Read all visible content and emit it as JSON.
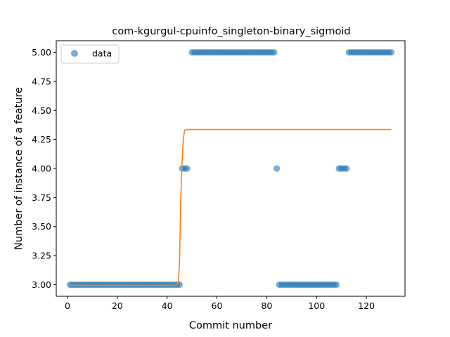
{
  "chart_data": {
    "type": "scatter",
    "title": "com-kgurgul-cpuinfo_singleton-binary_sigmoid",
    "xlabel": "Commit number",
    "ylabel": "Number of instance of a feature",
    "xlim": [
      -4.5,
      135.5
    ],
    "ylim": [
      2.9,
      5.1
    ],
    "x_ticks": [
      0,
      20,
      40,
      60,
      80,
      100,
      120
    ],
    "y_ticks": [
      3.0,
      3.25,
      3.5,
      3.75,
      4.0,
      4.25,
      4.5,
      4.75,
      5.0
    ],
    "x_tick_labels": [
      "0",
      "20",
      "40",
      "60",
      "80",
      "100",
      "120"
    ],
    "y_tick_labels": [
      "3.00",
      "3.25",
      "3.50",
      "3.75",
      "4.00",
      "4.25",
      "4.50",
      "4.75",
      "5.00"
    ],
    "grid": false,
    "legend": {
      "entries": [
        "data"
      ],
      "placement": "top-left"
    },
    "series": [
      {
        "name": "data",
        "kind": "scatter",
        "color": "#1f77b4",
        "points": [
          [
            1,
            3
          ],
          [
            2,
            3
          ],
          [
            3,
            3
          ],
          [
            4,
            3
          ],
          [
            5,
            3
          ],
          [
            6,
            3
          ],
          [
            7,
            3
          ],
          [
            8,
            3
          ],
          [
            9,
            3
          ],
          [
            10,
            3
          ],
          [
            11,
            3
          ],
          [
            12,
            3
          ],
          [
            13,
            3
          ],
          [
            14,
            3
          ],
          [
            15,
            3
          ],
          [
            16,
            3
          ],
          [
            17,
            3
          ],
          [
            18,
            3
          ],
          [
            19,
            3
          ],
          [
            20,
            3
          ],
          [
            21,
            3
          ],
          [
            22,
            3
          ],
          [
            23,
            3
          ],
          [
            24,
            3
          ],
          [
            25,
            3
          ],
          [
            26,
            3
          ],
          [
            27,
            3
          ],
          [
            28,
            3
          ],
          [
            29,
            3
          ],
          [
            30,
            3
          ],
          [
            31,
            3
          ],
          [
            32,
            3
          ],
          [
            33,
            3
          ],
          [
            34,
            3
          ],
          [
            35,
            3
          ],
          [
            36,
            3
          ],
          [
            37,
            3
          ],
          [
            38,
            3
          ],
          [
            39,
            3
          ],
          [
            40,
            3
          ],
          [
            41,
            3
          ],
          [
            42,
            3
          ],
          [
            43,
            3
          ],
          [
            44,
            3
          ],
          [
            45,
            3
          ],
          [
            46,
            4
          ],
          [
            47,
            4
          ],
          [
            48,
            4
          ],
          [
            50,
            5
          ],
          [
            51,
            5
          ],
          [
            52,
            5
          ],
          [
            53,
            5
          ],
          [
            54,
            5
          ],
          [
            55,
            5
          ],
          [
            56,
            5
          ],
          [
            57,
            5
          ],
          [
            58,
            5
          ],
          [
            59,
            5
          ],
          [
            60,
            5
          ],
          [
            61,
            5
          ],
          [
            62,
            5
          ],
          [
            63,
            5
          ],
          [
            64,
            5
          ],
          [
            65,
            5
          ],
          [
            66,
            5
          ],
          [
            67,
            5
          ],
          [
            68,
            5
          ],
          [
            69,
            5
          ],
          [
            70,
            5
          ],
          [
            71,
            5
          ],
          [
            72,
            5
          ],
          [
            73,
            5
          ],
          [
            74,
            5
          ],
          [
            75,
            5
          ],
          [
            76,
            5
          ],
          [
            77,
            5
          ],
          [
            78,
            5
          ],
          [
            79,
            5
          ],
          [
            80,
            5
          ],
          [
            81,
            5
          ],
          [
            82,
            5
          ],
          [
            83,
            5
          ],
          [
            84,
            4
          ],
          [
            85,
            3
          ],
          [
            86,
            3
          ],
          [
            87,
            3
          ],
          [
            88,
            3
          ],
          [
            89,
            3
          ],
          [
            90,
            3
          ],
          [
            91,
            3
          ],
          [
            92,
            3
          ],
          [
            93,
            3
          ],
          [
            94,
            3
          ],
          [
            95,
            3
          ],
          [
            96,
            3
          ],
          [
            97,
            3
          ],
          [
            98,
            3
          ],
          [
            99,
            3
          ],
          [
            100,
            3
          ],
          [
            101,
            3
          ],
          [
            102,
            3
          ],
          [
            103,
            3
          ],
          [
            104,
            3
          ],
          [
            105,
            3
          ],
          [
            106,
            3
          ],
          [
            107,
            3
          ],
          [
            108,
            3
          ],
          [
            109,
            4
          ],
          [
            110,
            4
          ],
          [
            111,
            4
          ],
          [
            112,
            4
          ],
          [
            113,
            5
          ],
          [
            114,
            5
          ],
          [
            115,
            5
          ],
          [
            116,
            5
          ],
          [
            117,
            5
          ],
          [
            118,
            5
          ],
          [
            119,
            5
          ],
          [
            120,
            5
          ],
          [
            121,
            5
          ],
          [
            122,
            5
          ],
          [
            123,
            5
          ],
          [
            124,
            5
          ],
          [
            125,
            5
          ],
          [
            126,
            5
          ],
          [
            127,
            5
          ],
          [
            128,
            5
          ],
          [
            129,
            5
          ],
          [
            130,
            5
          ]
        ]
      },
      {
        "name": "",
        "kind": "line",
        "color": "#ff7f0e",
        "points": [
          [
            1,
            2.995
          ],
          [
            43,
            2.995
          ],
          [
            44,
            3.0
          ],
          [
            44.6,
            3.03
          ],
          [
            45,
            3.2
          ],
          [
            45.5,
            3.75
          ],
          [
            46,
            4.05
          ],
          [
            46.5,
            4.25
          ],
          [
            47,
            4.33
          ],
          [
            48,
            4.335
          ],
          [
            130,
            4.335
          ]
        ]
      }
    ]
  }
}
